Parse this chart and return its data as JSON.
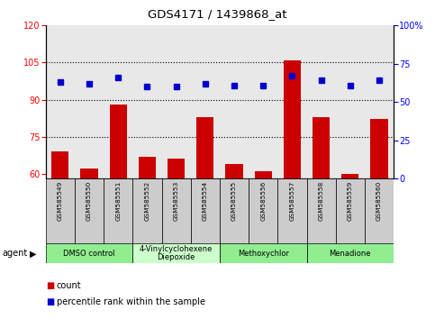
{
  "title": "GDS4171 / 1439868_at",
  "samples": [
    "GSM585549",
    "GSM585550",
    "GSM585551",
    "GSM585552",
    "GSM585553",
    "GSM585554",
    "GSM585555",
    "GSM585556",
    "GSM585557",
    "GSM585558",
    "GSM585559",
    "GSM585560"
  ],
  "count_values": [
    69,
    62,
    88,
    67,
    66,
    83,
    64,
    61,
    106,
    83,
    60,
    82
  ],
  "percentile_values": [
    63,
    62,
    66,
    60,
    60,
    62,
    61,
    61,
    67,
    64,
    61,
    64
  ],
  "ylim_left": [
    58,
    120
  ],
  "ylim_right": [
    0,
    100
  ],
  "yticks_left": [
    60,
    75,
    90,
    105,
    120
  ],
  "yticks_right": [
    0,
    25,
    50,
    75,
    100
  ],
  "ytick_labels_right": [
    "0",
    "25",
    "50",
    "75",
    "100%"
  ],
  "bar_color": "#cc0000",
  "dot_color": "#0000cc",
  "bg_color_plot": "#e8e8e8",
  "agent_groups": [
    {
      "label": "DMSO control",
      "start": 0,
      "end": 3,
      "color": "#90ee90"
    },
    {
      "label": "4-Vinylcyclohexene\nDiepoxide",
      "start": 3,
      "end": 6,
      "color": "#ccffcc"
    },
    {
      "label": "Methoxychlor",
      "start": 6,
      "end": 9,
      "color": "#90ee90"
    },
    {
      "label": "Menadione",
      "start": 9,
      "end": 12,
      "color": "#90ee90"
    }
  ],
  "grid_yticks": [
    75,
    90,
    105
  ],
  "legend_items": [
    {
      "label": "count",
      "color": "#cc0000"
    },
    {
      "label": "percentile rank within the sample",
      "color": "#0000cc"
    }
  ]
}
